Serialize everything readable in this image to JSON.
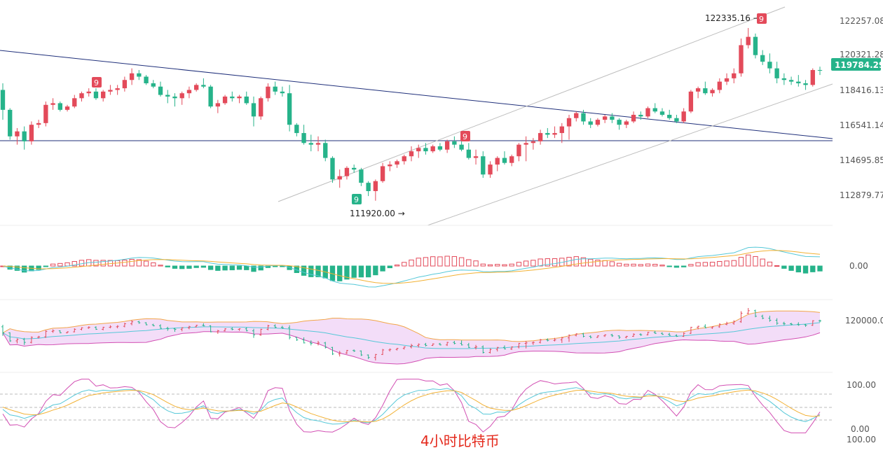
{
  "chart_data": [
    {
      "type": "candlestick",
      "colors": {
        "up": "#e34a5a",
        "down": "#26b38a"
      },
      "price_axis": {
        "ticks": [
          "122257.08",
          "120321.28",
          "118416.13",
          "116541.14",
          "114695.85",
          "112879.77"
        ],
        "ylim": [
          110600,
          123600
        ],
        "current_price": "119784.29",
        "current_price_color": "#26b38a"
      },
      "annotations": {
        "high_label": "122335.16 →",
        "low_label": "111920.00 →",
        "td_markers": [
          "9",
          "9",
          "9",
          "9"
        ]
      },
      "ohlc": [
        [
          118600,
          119000,
          116800,
          117400
        ],
        [
          117400,
          117500,
          115600,
          115800
        ],
        [
          115800,
          116300,
          115300,
          116100
        ],
        [
          116100,
          116400,
          115000,
          115500
        ],
        [
          115500,
          116700,
          115300,
          116500
        ],
        [
          116500,
          116800,
          116300,
          116600
        ],
        [
          116600,
          117900,
          116400,
          117700
        ],
        [
          117700,
          118100,
          117400,
          117800
        ],
        [
          117800,
          117900,
          117300,
          117400
        ],
        [
          117400,
          117700,
          117300,
          117600
        ],
        [
          117600,
          118300,
          117500,
          118100
        ],
        [
          118100,
          118500,
          117900,
          118400
        ],
        [
          118400,
          118700,
          118200,
          118500
        ],
        [
          118500,
          118700,
          118000,
          118100
        ],
        [
          118100,
          118600,
          117900,
          118500
        ],
        [
          118500,
          118900,
          118300,
          118600
        ],
        [
          118600,
          118900,
          118300,
          118700
        ],
        [
          118700,
          119400,
          118500,
          119200
        ],
        [
          119200,
          119900,
          118900,
          119600
        ],
        [
          119600,
          119800,
          119200,
          119400
        ],
        [
          119400,
          119500,
          118900,
          119000
        ],
        [
          119000,
          119200,
          118700,
          118800
        ],
        [
          118800,
          119100,
          118200,
          118300
        ],
        [
          118300,
          118600,
          117800,
          118200
        ],
        [
          118200,
          118400,
          117600,
          118100
        ],
        [
          118100,
          118500,
          117700,
          118400
        ],
        [
          118400,
          118800,
          118100,
          118600
        ],
        [
          118600,
          119000,
          118500,
          118900
        ],
        [
          118900,
          119300,
          118700,
          118800
        ],
        [
          118800,
          118900,
          117500,
          117600
        ],
        [
          117600,
          118000,
          117200,
          117800
        ],
        [
          117800,
          118300,
          117700,
          118200
        ],
        [
          118200,
          118500,
          117900,
          118100
        ],
        [
          118100,
          118300,
          117800,
          118200
        ],
        [
          118200,
          118500,
          117700,
          117800
        ],
        [
          117800,
          118200,
          116400,
          117000
        ],
        [
          117000,
          118200,
          116800,
          118100
        ],
        [
          118100,
          119000,
          117900,
          118800
        ],
        [
          118800,
          119100,
          118300,
          118500
        ],
        [
          118500,
          118800,
          118200,
          118400
        ],
        [
          118400,
          118900,
          116100,
          116500
        ],
        [
          116500,
          116600,
          115800,
          116000
        ],
        [
          116000,
          116500,
          115300,
          115400
        ],
        [
          115400,
          115900,
          114900,
          115300
        ],
        [
          115300,
          115800,
          114900,
          115400
        ],
        [
          115400,
          115600,
          114300,
          114500
        ],
        [
          114500,
          114600,
          113000,
          113200
        ],
        [
          113200,
          113800,
          112700,
          113400
        ],
        [
          113400,
          114000,
          113200,
          113900
        ],
        [
          113900,
          114100,
          113600,
          113800
        ],
        [
          113800,
          113900,
          112800,
          113000
        ],
        [
          113000,
          113100,
          112200,
          112500
        ],
        [
          112500,
          113200,
          111920,
          113100
        ],
        [
          113100,
          114200,
          113000,
          114000
        ],
        [
          114000,
          114300,
          113700,
          114100
        ],
        [
          114100,
          114400,
          113900,
          114300
        ],
        [
          114300,
          114700,
          114100,
          114600
        ],
        [
          114600,
          115200,
          114300,
          114900
        ],
        [
          114900,
          115300,
          114500,
          115100
        ],
        [
          115100,
          115400,
          114700,
          114900
        ],
        [
          114900,
          115300,
          114800,
          115200
        ],
        [
          115200,
          115400,
          114900,
          115000
        ],
        [
          115000,
          115600,
          114800,
          115500
        ],
        [
          115500,
          115800,
          115100,
          115300
        ],
        [
          115300,
          115900,
          114900,
          115000
        ],
        [
          115000,
          115400,
          114400,
          114500
        ],
        [
          114500,
          115000,
          114100,
          114600
        ],
        [
          114600,
          114900,
          113300,
          113500
        ],
        [
          113500,
          114300,
          113300,
          114100
        ],
        [
          114100,
          114600,
          113700,
          114500
        ],
        [
          114500,
          114900,
          114100,
          114200
        ],
        [
          114200,
          114700,
          114000,
          114600
        ],
        [
          114600,
          115400,
          114300,
          115300
        ],
        [
          115300,
          115800,
          114300,
          115400
        ],
        [
          115400,
          115700,
          115000,
          115500
        ],
        [
          115500,
          116200,
          115300,
          116000
        ],
        [
          116000,
          116300,
          115700,
          115900
        ],
        [
          115900,
          116400,
          115700,
          116000
        ],
        [
          116000,
          116600,
          115400,
          116400
        ],
        [
          116400,
          117100,
          115600,
          116900
        ],
        [
          116900,
          117300,
          116700,
          117200
        ],
        [
          117200,
          117400,
          116500,
          116700
        ],
        [
          116700,
          116900,
          116300,
          116500
        ],
        [
          116500,
          116900,
          116400,
          116800
        ],
        [
          116800,
          117100,
          116600,
          117000
        ],
        [
          117000,
          117200,
          116600,
          116800
        ],
        [
          116800,
          116900,
          116200,
          116500
        ],
        [
          116500,
          116800,
          116300,
          116700
        ],
        [
          116700,
          117300,
          116600,
          117100
        ],
        [
          117100,
          117300,
          116800,
          117000
        ],
        [
          117000,
          117600,
          116900,
          117500
        ],
        [
          117500,
          117800,
          117200,
          117300
        ],
        [
          117300,
          117500,
          117000,
          117100
        ],
        [
          117100,
          117400,
          116800,
          116900
        ],
        [
          116900,
          117100,
          116600,
          116700
        ],
        [
          116700,
          117500,
          116600,
          117300
        ],
        [
          117300,
          118600,
          117200,
          118500
        ],
        [
          118500,
          118800,
          118100,
          118700
        ],
        [
          118700,
          119100,
          118300,
          118400
        ],
        [
          118400,
          118700,
          118200,
          118600
        ],
        [
          118600,
          119300,
          118400,
          119100
        ],
        [
          119100,
          119600,
          118900,
          119300
        ],
        [
          119300,
          119900,
          119000,
          119600
        ],
        [
          119600,
          121700,
          119400,
          121300
        ],
        [
          121300,
          122335,
          121100,
          121800
        ],
        [
          121800,
          122000,
          120500,
          120700
        ],
        [
          120700,
          121000,
          120100,
          120300
        ],
        [
          120300,
          120800,
          119600,
          119900
        ],
        [
          119900,
          120300,
          119000,
          119300
        ],
        [
          119300,
          119600,
          118900,
          119200
        ],
        [
          119200,
          119400,
          118900,
          119100
        ],
        [
          119100,
          119500,
          118800,
          119000
        ],
        [
          119000,
          119200,
          118600,
          118900
        ],
        [
          118900,
          119900,
          118800,
          119800
        ],
        [
          119800,
          120000,
          119500,
          119784
        ]
      ]
    },
    {
      "type": "macd",
      "histogram_colors": {
        "positive": "#e34a5a",
        "negative": "#26b38a"
      },
      "axis_label": "0.00",
      "line_colors": {
        "dif": "#56c8d8",
        "dea": "#f2b134"
      }
    },
    {
      "type": "bollinger",
      "axis_label": "120000.00",
      "band_fill": "#f3ddf8",
      "colors": {
        "upper": "#f2a64a",
        "middle": "#56c8d8",
        "lower": "#d24fb3"
      }
    },
    {
      "type": "kdj",
      "axis_labels": [
        "100.00",
        "0.00",
        "100.00"
      ],
      "colors": {
        "k": "#56c8d8",
        "d": "#f2b134",
        "j": "#d24fb3"
      }
    }
  ],
  "caption": "4小时比特币"
}
